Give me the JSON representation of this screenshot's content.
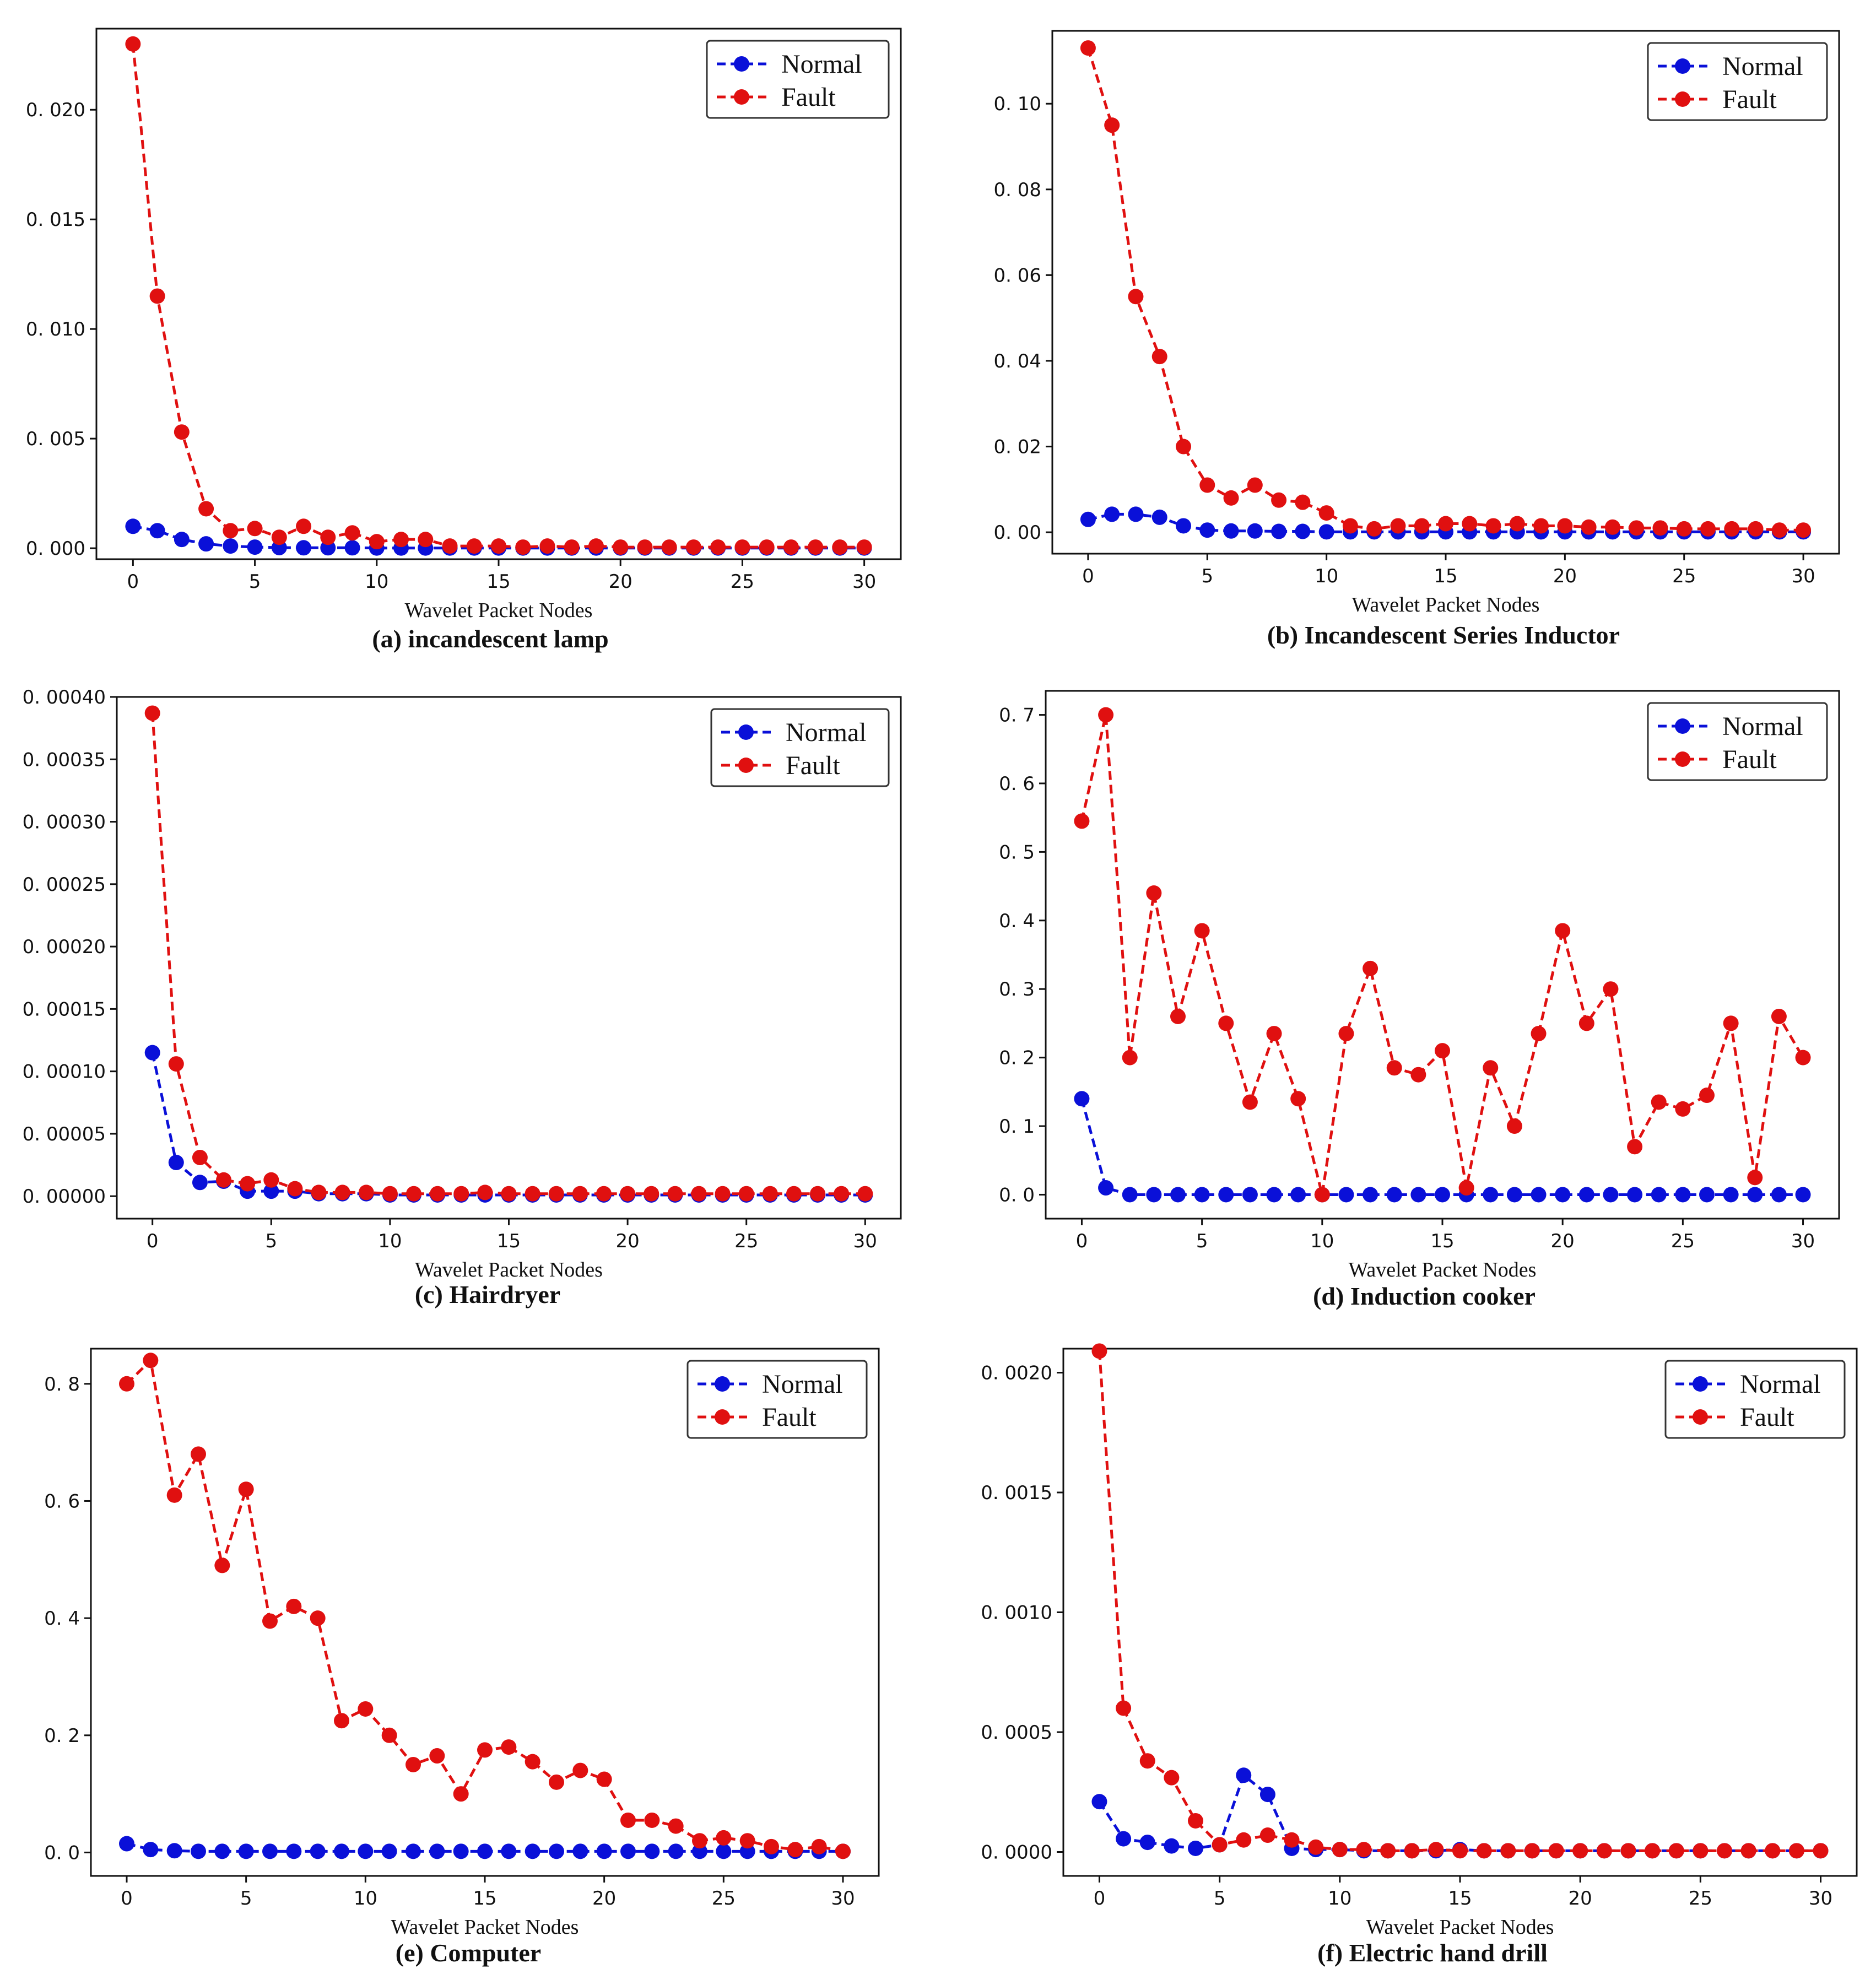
{
  "colors": {
    "normal": "#0a10d8",
    "fault": "#e01010",
    "axis": "#111111"
  },
  "chart_data": [
    {
      "type": "line",
      "caption": "(a) incandescent lamp",
      "xlabel": "Wavelet Packet Nodes",
      "ylabel": "",
      "xlim": [
        -1.5,
        31.5
      ],
      "ylim": [
        -0.0005,
        0.0237
      ],
      "xticks": [
        0,
        5,
        10,
        15,
        20,
        25,
        30
      ],
      "xtick_labels": [
        "0",
        "5",
        "10",
        "15",
        "20",
        "25",
        "30"
      ],
      "yticks": [
        0,
        0.005,
        0.01,
        0.015,
        0.02
      ],
      "ytick_labels": [
        "0. 000",
        "0. 005",
        "0. 010",
        "0. 015",
        "0. 020"
      ],
      "legend": "top-right",
      "x": [
        0,
        1,
        2,
        3,
        4,
        5,
        6,
        7,
        8,
        9,
        10,
        11,
        12,
        13,
        14,
        15,
        16,
        17,
        18,
        19,
        20,
        21,
        22,
        23,
        24,
        25,
        26,
        27,
        28,
        29,
        30
      ],
      "series": [
        {
          "name": "Normal",
          "values": [
            0.001,
            0.0008,
            0.0004,
            0.0002,
            0.0001,
            5e-05,
            3e-05,
            2e-05,
            2e-05,
            2e-05,
            1e-05,
            1e-05,
            1e-05,
            1e-05,
            1e-05,
            1e-05,
            1e-05,
            1e-05,
            1e-05,
            1e-05,
            1e-05,
            1e-05,
            1e-05,
            1e-05,
            1e-05,
            1e-05,
            1e-05,
            1e-05,
            1e-05,
            1e-05,
            1e-05
          ]
        },
        {
          "name": "Fault",
          "values": [
            0.023,
            0.0115,
            0.0053,
            0.0018,
            0.0008,
            0.0009,
            0.0005,
            0.001,
            0.0005,
            0.0007,
            0.0003,
            0.0004,
            0.0004,
            0.0001,
            0.0001,
            0.0001,
            5e-05,
            0.0001,
            5e-05,
            0.0001,
            5e-05,
            5e-05,
            5e-05,
            5e-05,
            5e-05,
            5e-05,
            5e-05,
            5e-05,
            5e-05,
            5e-05,
            5e-05
          ]
        }
      ]
    },
    {
      "type": "line",
      "caption": "(b) Incandescent Series Inductor",
      "xlabel": "Wavelet Packet Nodes",
      "ylabel": "",
      "xlim": [
        -1.5,
        31.5
      ],
      "ylim": [
        -0.005,
        0.117
      ],
      "xticks": [
        0,
        5,
        10,
        15,
        20,
        25,
        30
      ],
      "xtick_labels": [
        "0",
        "5",
        "10",
        "15",
        "20",
        "25",
        "30"
      ],
      "yticks": [
        0,
        0.02,
        0.04,
        0.06,
        0.08,
        0.1
      ],
      "ytick_labels": [
        "0. 00",
        "0. 02",
        "0. 04",
        "0. 06",
        "0. 08",
        "0. 10"
      ],
      "legend": "top-right",
      "x": [
        0,
        1,
        2,
        3,
        4,
        5,
        6,
        7,
        8,
        9,
        10,
        11,
        12,
        13,
        14,
        15,
        16,
        17,
        18,
        19,
        20,
        21,
        22,
        23,
        24,
        25,
        26,
        27,
        28,
        29,
        30
      ],
      "series": [
        {
          "name": "Normal",
          "values": [
            0.003,
            0.0042,
            0.0042,
            0.0035,
            0.0015,
            0.0005,
            0.0003,
            0.0003,
            0.0002,
            0.0002,
            0.0001,
            0.0001,
            0.0001,
            0.0001,
            0.0001,
            0.0001,
            0.0001,
            0.0001,
            0.0001,
            0.0001,
            0.0001,
            0.0001,
            0.0001,
            0.0001,
            0.0001,
            0.0001,
            0.0001,
            0.0001,
            0.0001,
            0.0001,
            0.0001
          ]
        },
        {
          "name": "Fault",
          "values": [
            0.113,
            0.095,
            0.055,
            0.041,
            0.02,
            0.011,
            0.008,
            0.011,
            0.0075,
            0.007,
            0.0045,
            0.0015,
            0.0008,
            0.0015,
            0.0015,
            0.002,
            0.002,
            0.0015,
            0.002,
            0.0015,
            0.0015,
            0.0012,
            0.0012,
            0.001,
            0.001,
            0.0008,
            0.0008,
            0.0008,
            0.0008,
            0.0005,
            0.0005
          ]
        }
      ]
    },
    {
      "type": "line",
      "caption": "(c) Hairdryer",
      "xlabel": "Wavelet Packet Nodes",
      "ylabel": "",
      "xlim": [
        -1.5,
        31.5
      ],
      "ylim": [
        -1.8e-05,
        0.0004
      ],
      "xticks": [
        0,
        5,
        10,
        15,
        20,
        25,
        30
      ],
      "xtick_labels": [
        "0",
        "5",
        "10",
        "15",
        "20",
        "25",
        "30"
      ],
      "yticks": [
        0,
        5e-05,
        0.0001,
        0.00015,
        0.0002,
        0.00025,
        0.0003,
        0.00035,
        0.0004
      ],
      "ytick_labels": [
        "0. 00000",
        "0. 00005",
        "0. 00010",
        "0. 00015",
        "0. 00020",
        "0. 00025",
        "0. 00030",
        "0. 00035",
        "0. 00040"
      ],
      "legend": "top-right",
      "x": [
        0,
        1,
        2,
        3,
        4,
        5,
        6,
        7,
        8,
        9,
        10,
        11,
        12,
        13,
        14,
        15,
        16,
        17,
        18,
        19,
        20,
        21,
        22,
        23,
        24,
        25,
        26,
        27,
        28,
        29,
        30
      ],
      "series": [
        {
          "name": "Normal",
          "values": [
            0.000115,
            2.7e-05,
            1.1e-05,
            1.2e-05,
            4e-06,
            4e-06,
            4e-06,
            2e-06,
            2e-06,
            2e-06,
            1e-06,
            1e-06,
            1e-06,
            1e-06,
            1e-06,
            1e-06,
            1e-06,
            1e-06,
            1e-06,
            1e-06,
            1e-06,
            1e-06,
            1e-06,
            1e-06,
            1e-06,
            1e-06,
            1e-06,
            1e-06,
            1e-06,
            1e-06,
            1e-06
          ]
        },
        {
          "name": "Fault",
          "values": [
            0.000387,
            0.000106,
            3.1e-05,
            1.3e-05,
            1e-05,
            1.3e-05,
            6e-06,
            3e-06,
            3e-06,
            3e-06,
            2e-06,
            2e-06,
            2e-06,
            2e-06,
            3e-06,
            2e-06,
            2e-06,
            2e-06,
            2e-06,
            2e-06,
            2e-06,
            2e-06,
            2e-06,
            2e-06,
            2e-06,
            2e-06,
            2e-06,
            2e-06,
            2e-06,
            2e-06,
            2e-06
          ]
        }
      ]
    },
    {
      "type": "line",
      "caption": "(d) Induction cooker",
      "xlabel": "Wavelet Packet Nodes",
      "ylabel": "",
      "xlim": [
        -1.5,
        31.5
      ],
      "ylim": [
        -0.035,
        0.735
      ],
      "xticks": [
        0,
        5,
        10,
        15,
        20,
        25,
        30
      ],
      "xtick_labels": [
        "0",
        "5",
        "10",
        "15",
        "20",
        "25",
        "30"
      ],
      "yticks": [
        0,
        0.1,
        0.2,
        0.3,
        0.4,
        0.5,
        0.6,
        0.7
      ],
      "ytick_labels": [
        "0. 0",
        "0. 1",
        "0. 2",
        "0. 3",
        "0. 4",
        "0. 5",
        "0. 6",
        "0. 7"
      ],
      "legend": "top-right",
      "x": [
        0,
        1,
        2,
        3,
        4,
        5,
        6,
        7,
        8,
        9,
        10,
        11,
        12,
        13,
        14,
        15,
        16,
        17,
        18,
        19,
        20,
        21,
        22,
        23,
        24,
        25,
        26,
        27,
        28,
        29,
        30
      ],
      "series": [
        {
          "name": "Normal",
          "values": [
            0.14,
            0.01,
            0,
            0,
            0,
            0,
            0,
            0,
            0,
            0,
            0,
            0,
            0,
            0,
            0,
            0,
            0,
            0,
            0,
            0,
            0,
            0,
            0,
            0,
            0,
            0,
            0,
            0,
            0,
            0,
            0
          ]
        },
        {
          "name": "Fault",
          "values": [
            0.545,
            0.7,
            0.2,
            0.44,
            0.26,
            0.385,
            0.25,
            0.135,
            0.235,
            0.14,
            0,
            0.235,
            0.33,
            0.185,
            0.175,
            0.21,
            0.01,
            0.185,
            0.1,
            0.235,
            0.385,
            0.25,
            0.3,
            0.07,
            0.135,
            0.125,
            0.145,
            0.25,
            0.025,
            0.26,
            0.2
          ]
        }
      ]
    },
    {
      "type": "line",
      "caption": "(e) Computer",
      "xlabel": "Wavelet Packet Nodes",
      "ylabel": "",
      "xlim": [
        -1.5,
        31.5
      ],
      "ylim": [
        -0.04,
        0.86
      ],
      "xticks": [
        0,
        5,
        10,
        15,
        20,
        25,
        30
      ],
      "xtick_labels": [
        "0",
        "5",
        "10",
        "15",
        "20",
        "25",
        "30"
      ],
      "yticks": [
        0,
        0.2,
        0.4,
        0.6,
        0.8
      ],
      "ytick_labels": [
        "0. 0",
        "0. 2",
        "0. 4",
        "0. 6",
        "0. 8"
      ],
      "legend": "top-right",
      "x": [
        0,
        1,
        2,
        3,
        4,
        5,
        6,
        7,
        8,
        9,
        10,
        11,
        12,
        13,
        14,
        15,
        16,
        17,
        18,
        19,
        20,
        21,
        22,
        23,
        24,
        25,
        26,
        27,
        28,
        29,
        30
      ],
      "series": [
        {
          "name": "Normal",
          "values": [
            0.015,
            0.005,
            0.003,
            0.002,
            0.002,
            0.002,
            0.002,
            0.002,
            0.002,
            0.002,
            0.002,
            0.002,
            0.002,
            0.002,
            0.002,
            0.002,
            0.002,
            0.002,
            0.002,
            0.002,
            0.002,
            0.002,
            0.002,
            0.002,
            0.002,
            0.002,
            0.002,
            0.002,
            0.002,
            0.002,
            0.002
          ]
        },
        {
          "name": "Fault",
          "values": [
            0.8,
            0.84,
            0.61,
            0.68,
            0.49,
            0.62,
            0.395,
            0.42,
            0.4,
            0.225,
            0.245,
            0.2,
            0.15,
            0.165,
            0.1,
            0.175,
            0.18,
            0.155,
            0.12,
            0.14,
            0.125,
            0.055,
            0.055,
            0.045,
            0.02,
            0.025,
            0.02,
            0.01,
            0.005,
            0.01,
            0.002
          ]
        }
      ]
    },
    {
      "type": "line",
      "caption": "(f) Electric hand drill",
      "xlabel": "Wavelet Packet Nodes",
      "ylabel": "",
      "xlim": [
        -1.5,
        31.5
      ],
      "ylim": [
        -0.0001,
        0.0021
      ],
      "xticks": [
        0,
        5,
        10,
        15,
        20,
        25,
        30
      ],
      "xtick_labels": [
        "0",
        "5",
        "10",
        "15",
        "20",
        "25",
        "30"
      ],
      "yticks": [
        0,
        0.0005,
        0.001,
        0.0015,
        0.002
      ],
      "ytick_labels": [
        "0. 0000",
        "0. 0005",
        "0. 0010",
        "0. 0015",
        "0. 0020"
      ],
      "legend": "top-right",
      "x": [
        0,
        1,
        2,
        3,
        4,
        5,
        6,
        7,
        8,
        9,
        10,
        11,
        12,
        13,
        14,
        15,
        16,
        17,
        18,
        19,
        20,
        21,
        22,
        23,
        24,
        25,
        26,
        27,
        28,
        29,
        30
      ],
      "series": [
        {
          "name": "Normal",
          "values": [
            0.00021,
            5.5e-05,
            4e-05,
            2.5e-05,
            1.5e-05,
            3e-05,
            0.00032,
            0.00024,
            1.5e-05,
            1e-05,
            1e-05,
            5e-06,
            5e-06,
            5e-06,
            5e-06,
            1e-05,
            5e-06,
            5e-06,
            5e-06,
            5e-06,
            5e-06,
            5e-06,
            5e-06,
            5e-06,
            5e-06,
            5e-06,
            5e-06,
            5e-06,
            5e-06,
            5e-06,
            5e-06
          ]
        },
        {
          "name": "Fault",
          "values": [
            0.00209,
            0.0006,
            0.00038,
            0.00031,
            0.00013,
            3e-05,
            5e-05,
            7e-05,
            5e-05,
            2e-05,
            1e-05,
            1e-05,
            5e-06,
            5e-06,
            1e-05,
            5e-06,
            5e-06,
            5e-06,
            5e-06,
            5e-06,
            5e-06,
            5e-06,
            5e-06,
            5e-06,
            5e-06,
            5e-06,
            5e-06,
            5e-06,
            5e-06,
            5e-06,
            5e-06
          ]
        }
      ]
    }
  ]
}
